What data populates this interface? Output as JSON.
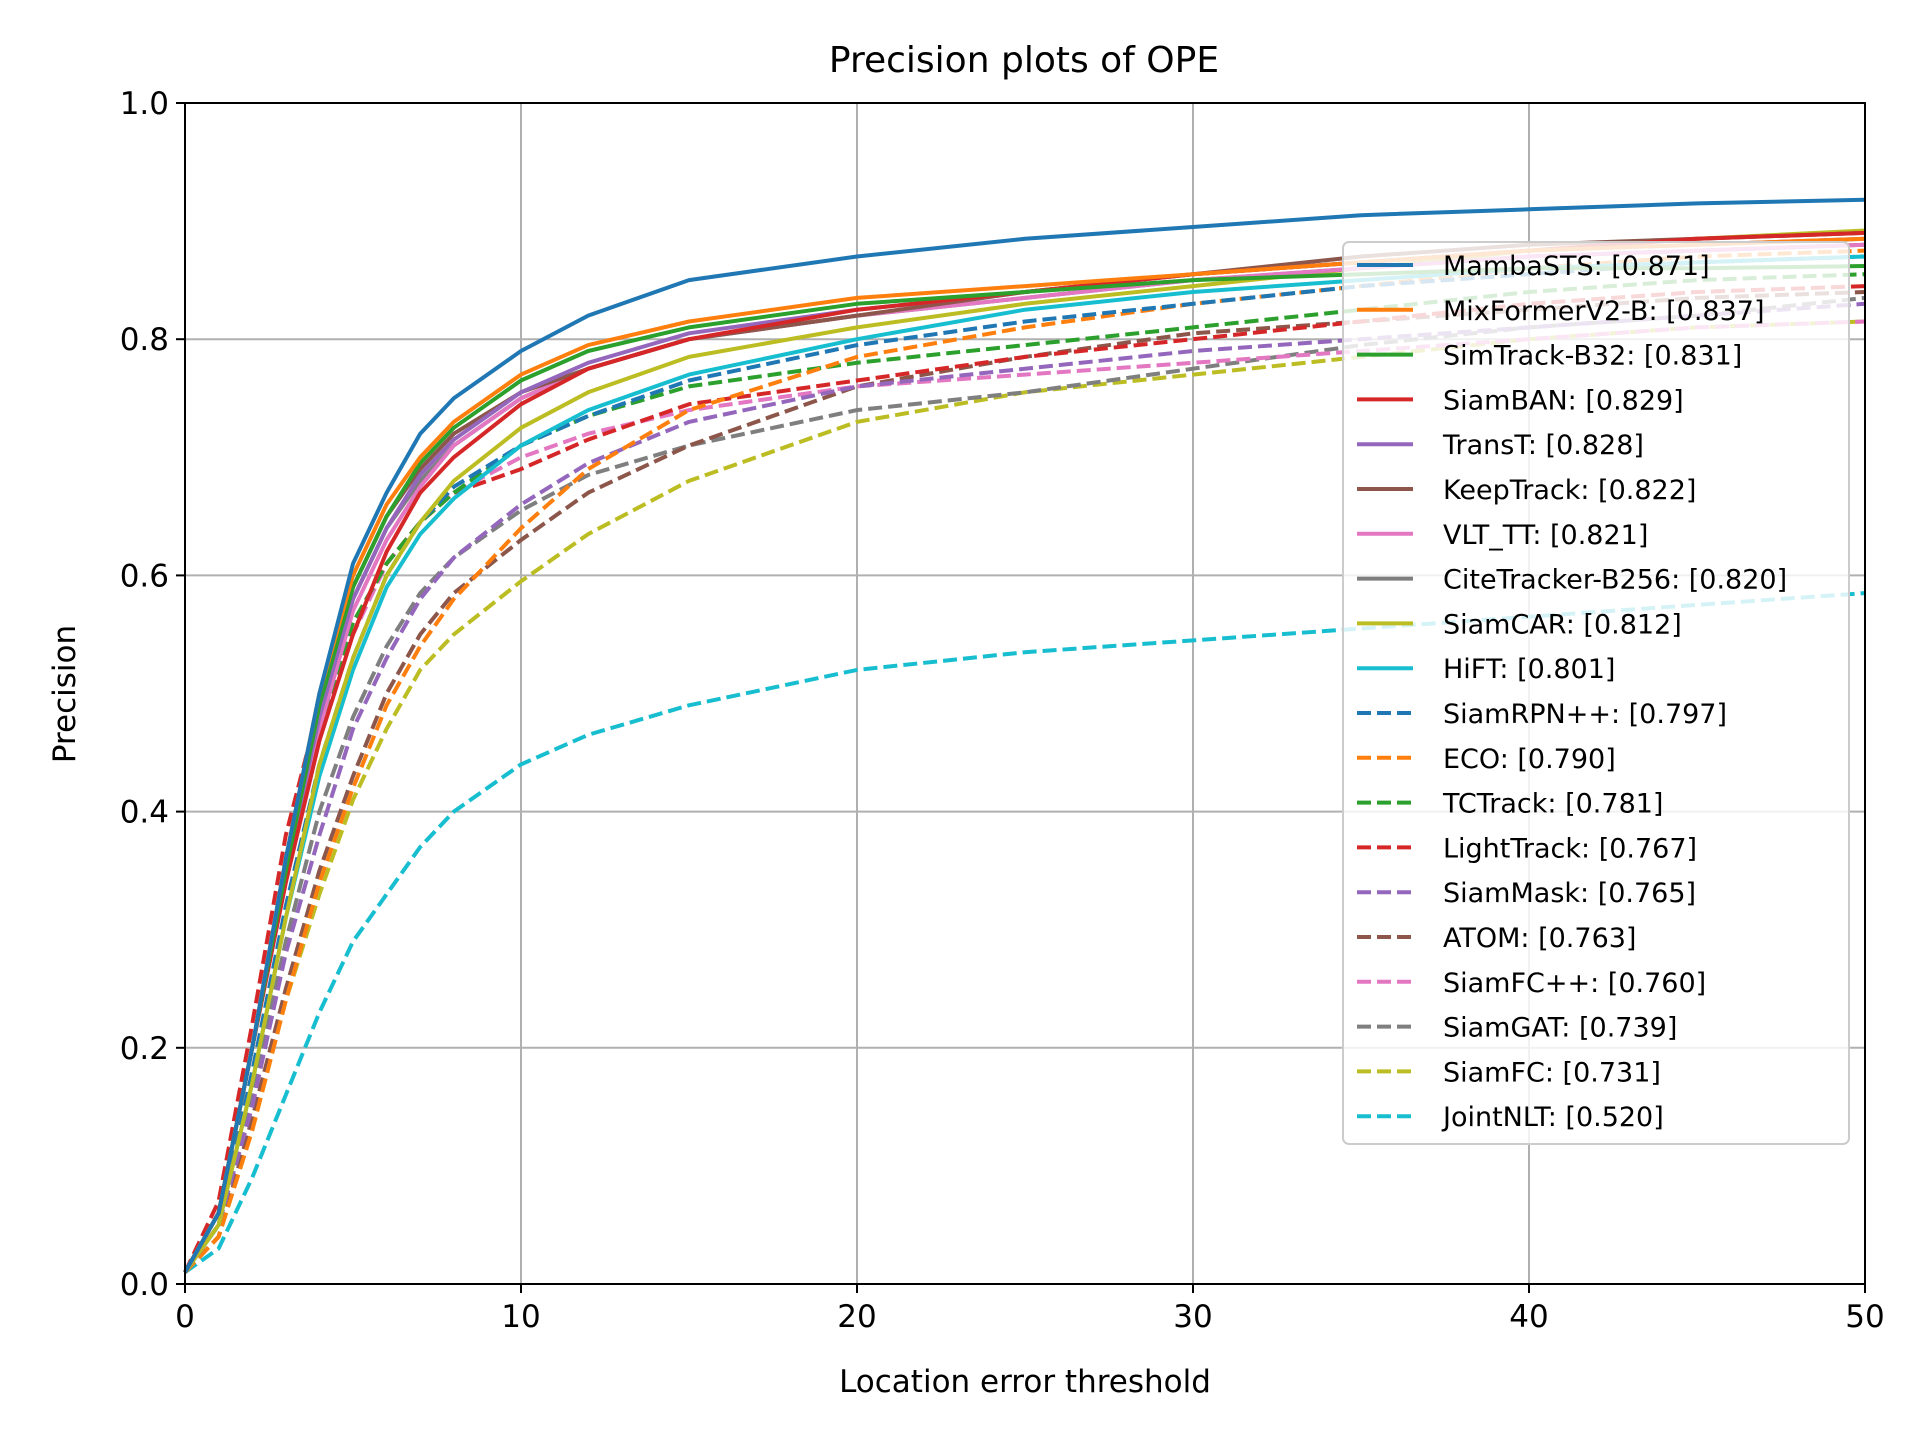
{
  "chart_data": {
    "type": "line",
    "title": "Precision plots of OPE",
    "xlabel": "Location error threshold",
    "ylabel": "Precision",
    "xlim": [
      0,
      50
    ],
    "ylim": [
      0,
      1
    ],
    "xticks": [
      0,
      10,
      20,
      30,
      40,
      50
    ],
    "xtick_labels": [
      "0",
      "10",
      "20",
      "30",
      "40",
      "50"
    ],
    "yticks": [
      0,
      0.2,
      0.4,
      0.6,
      0.8,
      1.0
    ],
    "ytick_labels": [
      "0.0",
      "0.2",
      "0.4",
      "0.6",
      "0.8",
      "1.0"
    ],
    "grid": true,
    "legend_position": "right",
    "x": [
      0,
      1,
      2,
      3,
      4,
      5,
      6,
      7,
      8,
      10,
      12,
      15,
      20,
      25,
      30,
      35,
      40,
      45,
      50
    ],
    "series": [
      {
        "name": "MambaSTS: [0.871]",
        "color": "#1f77b4",
        "dash": "solid",
        "values": [
          0.01,
          0.06,
          0.2,
          0.36,
          0.5,
          0.61,
          0.67,
          0.72,
          0.75,
          0.79,
          0.82,
          0.85,
          0.87,
          0.885,
          0.895,
          0.905,
          0.91,
          0.915,
          0.918
        ]
      },
      {
        "name": "MixFormerV2-B: [0.837]",
        "color": "#ff7f0e",
        "dash": "solid",
        "values": [
          0.01,
          0.06,
          0.2,
          0.36,
          0.5,
          0.6,
          0.66,
          0.7,
          0.73,
          0.77,
          0.795,
          0.815,
          0.835,
          0.845,
          0.855,
          0.865,
          0.875,
          0.88,
          0.885
        ]
      },
      {
        "name": "SimTrack-B32: [0.831]",
        "color": "#2ca02c",
        "dash": "solid",
        "values": [
          0.01,
          0.06,
          0.2,
          0.35,
          0.49,
          0.59,
          0.65,
          0.695,
          0.725,
          0.765,
          0.79,
          0.81,
          0.83,
          0.84,
          0.85,
          0.855,
          0.86,
          0.86,
          0.862
        ]
      },
      {
        "name": "SiamBAN: [0.829]",
        "color": "#d62728",
        "dash": "solid",
        "values": [
          0.01,
          0.06,
          0.2,
          0.34,
          0.46,
          0.55,
          0.62,
          0.67,
          0.7,
          0.745,
          0.775,
          0.8,
          0.825,
          0.84,
          0.855,
          0.865,
          0.875,
          0.885,
          0.89
        ]
      },
      {
        "name": "TransT: [0.828]",
        "color": "#9467bd",
        "dash": "solid",
        "values": [
          0.01,
          0.06,
          0.2,
          0.35,
          0.48,
          0.58,
          0.64,
          0.685,
          0.715,
          0.755,
          0.78,
          0.805,
          0.825,
          0.84,
          0.855,
          0.865,
          0.875,
          0.88,
          0.885
        ]
      },
      {
        "name": "KeepTrack: [0.822]",
        "color": "#8c564b",
        "dash": "solid",
        "values": [
          0.01,
          0.06,
          0.2,
          0.35,
          0.49,
          0.59,
          0.65,
          0.69,
          0.72,
          0.755,
          0.775,
          0.8,
          0.82,
          0.84,
          0.855,
          0.87,
          0.88,
          0.885,
          0.89
        ]
      },
      {
        "name": "VLT_TT: [0.821]",
        "color": "#e377c2",
        "dash": "solid",
        "values": [
          0.01,
          0.06,
          0.2,
          0.34,
          0.47,
          0.57,
          0.63,
          0.675,
          0.71,
          0.75,
          0.775,
          0.8,
          0.82,
          0.835,
          0.85,
          0.86,
          0.87,
          0.875,
          0.88
        ]
      },
      {
        "name": "CiteTracker-B256: [0.820]",
        "color": "#7f7f7f",
        "dash": "solid",
        "values": [
          0.01,
          0.06,
          0.2,
          0.35,
          0.48,
          0.58,
          0.64,
          0.68,
          0.71,
          0.75,
          0.775,
          0.8,
          0.82,
          0.835,
          0.85,
          0.86,
          0.87,
          0.875,
          0.88
        ]
      },
      {
        "name": "SiamCAR: [0.812]",
        "color": "#bcbd22",
        "dash": "solid",
        "values": [
          0.01,
          0.05,
          0.17,
          0.31,
          0.44,
          0.53,
          0.6,
          0.645,
          0.68,
          0.725,
          0.755,
          0.785,
          0.81,
          0.83,
          0.845,
          0.86,
          0.875,
          0.885,
          0.892
        ]
      },
      {
        "name": "HiFT: [0.801]",
        "color": "#17becf",
        "dash": "solid",
        "values": [
          0.01,
          0.05,
          0.17,
          0.31,
          0.43,
          0.52,
          0.59,
          0.635,
          0.665,
          0.71,
          0.74,
          0.77,
          0.8,
          0.825,
          0.84,
          0.85,
          0.86,
          0.865,
          0.87
        ]
      },
      {
        "name": "SiamRPN++: [0.797]",
        "color": "#1f77b4",
        "dash": "dashed",
        "values": [
          0.01,
          0.05,
          0.18,
          0.32,
          0.44,
          0.53,
          0.6,
          0.645,
          0.675,
          0.71,
          0.735,
          0.765,
          0.795,
          0.815,
          0.83,
          0.845,
          0.855,
          0.865,
          0.87
        ]
      },
      {
        "name": "ECO: [0.790]",
        "color": "#ff7f0e",
        "dash": "dashed",
        "values": [
          0.01,
          0.04,
          0.13,
          0.24,
          0.34,
          0.42,
          0.49,
          0.54,
          0.58,
          0.64,
          0.69,
          0.74,
          0.785,
          0.81,
          0.83,
          0.845,
          0.86,
          0.87,
          0.875
        ]
      },
      {
        "name": "TCTrack: [0.781]",
        "color": "#2ca02c",
        "dash": "dashed",
        "values": [
          0.01,
          0.06,
          0.2,
          0.35,
          0.47,
          0.56,
          0.61,
          0.645,
          0.67,
          0.71,
          0.735,
          0.76,
          0.78,
          0.795,
          0.81,
          0.825,
          0.84,
          0.85,
          0.855
        ]
      },
      {
        "name": "LightTrack: [0.767]",
        "color": "#d62728",
        "dash": "dashed",
        "values": [
          0.01,
          0.07,
          0.22,
          0.38,
          0.49,
          0.56,
          0.61,
          0.645,
          0.67,
          0.69,
          0.715,
          0.745,
          0.765,
          0.785,
          0.8,
          0.815,
          0.83,
          0.84,
          0.845
        ]
      },
      {
        "name": "SiamMask: [0.765]",
        "color": "#9467bd",
        "dash": "dashed",
        "values": [
          0.01,
          0.05,
          0.15,
          0.28,
          0.38,
          0.47,
          0.53,
          0.58,
          0.615,
          0.66,
          0.695,
          0.73,
          0.76,
          0.775,
          0.79,
          0.8,
          0.81,
          0.82,
          0.83
        ]
      },
      {
        "name": "ATOM: [0.763]",
        "color": "#8c564b",
        "dash": "dashed",
        "values": [
          0.01,
          0.04,
          0.14,
          0.25,
          0.35,
          0.43,
          0.5,
          0.55,
          0.585,
          0.63,
          0.67,
          0.71,
          0.76,
          0.785,
          0.805,
          0.815,
          0.825,
          0.835,
          0.84
        ]
      },
      {
        "name": "SiamFC++: [0.760]",
        "color": "#e377c2",
        "dash": "dashed",
        "values": [
          0.01,
          0.06,
          0.2,
          0.35,
          0.47,
          0.55,
          0.61,
          0.645,
          0.67,
          0.7,
          0.72,
          0.74,
          0.76,
          0.77,
          0.78,
          0.79,
          0.8,
          0.81,
          0.815
        ]
      },
      {
        "name": "SiamGAT: [0.739]",
        "color": "#7f7f7f",
        "dash": "dashed",
        "values": [
          0.01,
          0.05,
          0.16,
          0.29,
          0.4,
          0.48,
          0.54,
          0.585,
          0.615,
          0.655,
          0.685,
          0.71,
          0.74,
          0.755,
          0.775,
          0.795,
          0.81,
          0.82,
          0.835
        ]
      },
      {
        "name": "SiamFC: [0.731]",
        "color": "#bcbd22",
        "dash": "dashed",
        "values": [
          0.01,
          0.04,
          0.13,
          0.24,
          0.33,
          0.41,
          0.47,
          0.52,
          0.55,
          0.595,
          0.635,
          0.68,
          0.73,
          0.755,
          0.77,
          0.785,
          0.8,
          0.81,
          0.815
        ]
      },
      {
        "name": "JointNLT: [0.520]",
        "color": "#17becf",
        "dash": "dashed",
        "values": [
          0.01,
          0.03,
          0.09,
          0.16,
          0.23,
          0.29,
          0.33,
          0.37,
          0.4,
          0.44,
          0.465,
          0.49,
          0.52,
          0.535,
          0.545,
          0.555,
          0.565,
          0.575,
          0.585
        ]
      }
    ]
  }
}
